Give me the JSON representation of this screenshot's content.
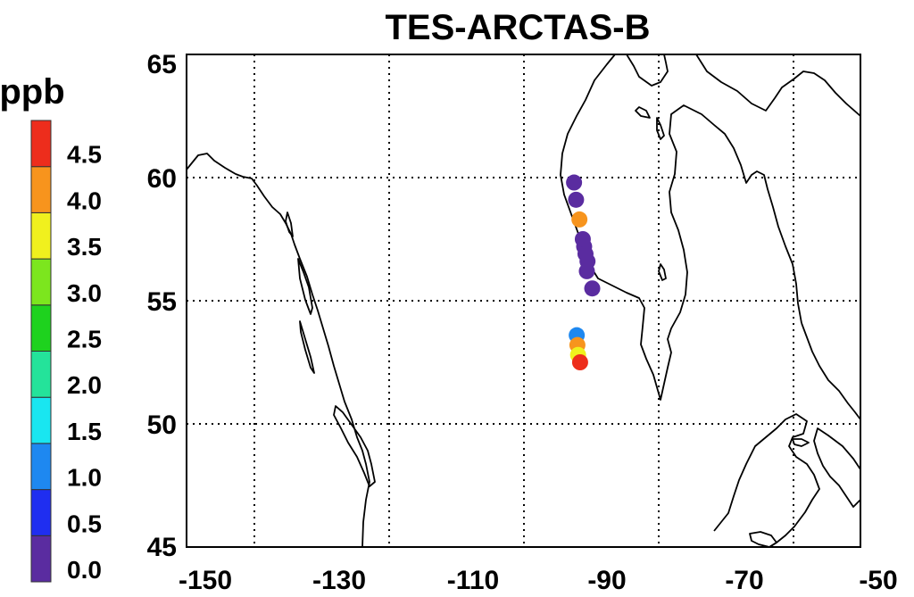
{
  "chart_data": {
    "type": "scatter",
    "title": "TES-ARCTAS-B",
    "xlim": [
      -150,
      -50
    ],
    "ylim": [
      45,
      65
    ],
    "x_ticks": [
      -150,
      -130,
      -110,
      -90,
      -70,
      -50
    ],
    "y_ticks": [
      45,
      50,
      55,
      60,
      65
    ],
    "x_tick_labels": [
      "-150",
      "-130",
      "-110",
      "-90",
      "-70",
      "-50"
    ],
    "y_tick_labels": [
      "45",
      "50",
      "55",
      "60",
      "65"
    ],
    "grid": true,
    "colorbar": {
      "unit": "ppb",
      "levels": [
        {
          "label": "0.0",
          "color": "#5a2ca0"
        },
        {
          "label": "0.5",
          "color": "#1f2ef0"
        },
        {
          "label": "1.0",
          "color": "#1e88f0"
        },
        {
          "label": "1.5",
          "color": "#19e6f0"
        },
        {
          "label": "2.0",
          "color": "#24e39a"
        },
        {
          "label": "2.5",
          "color": "#1ed21e"
        },
        {
          "label": "3.0",
          "color": "#7ce61e"
        },
        {
          "label": "3.5",
          "color": "#f0f01e"
        },
        {
          "label": "4.0",
          "color": "#f7941d"
        },
        {
          "label": "4.5",
          "color": "#ed2d1c"
        }
      ]
    },
    "points": [
      {
        "lon": -92.5,
        "lat": 59.8,
        "value": 0.0
      },
      {
        "lon": -92.2,
        "lat": 59.1,
        "value": 0.0
      },
      {
        "lon": -91.7,
        "lat": 58.3,
        "value": 4.0
      },
      {
        "lon": -91.2,
        "lat": 57.5,
        "value": 0.0
      },
      {
        "lon": -91.0,
        "lat": 57.2,
        "value": 0.0
      },
      {
        "lon": -90.8,
        "lat": 56.9,
        "value": 0.0
      },
      {
        "lon": -90.5,
        "lat": 56.6,
        "value": 0.0
      },
      {
        "lon": -90.6,
        "lat": 56.2,
        "value": 0.0
      },
      {
        "lon": -89.8,
        "lat": 55.5,
        "value": 0.0
      },
      {
        "lon": -92.1,
        "lat": 53.6,
        "value": 1.0
      },
      {
        "lon": -92.0,
        "lat": 53.2,
        "value": 4.0
      },
      {
        "lon": -91.9,
        "lat": 52.8,
        "value": 3.5
      },
      {
        "lon": -91.6,
        "lat": 52.5,
        "value": 4.5
      }
    ]
  }
}
